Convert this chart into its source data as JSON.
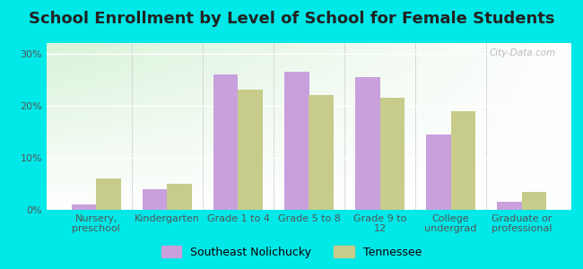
{
  "title": "School Enrollment by Level of School for Female Students",
  "categories": [
    "Nursery,\npreschool",
    "Kindergarten",
    "Grade 1 to 4",
    "Grade 5 to 8",
    "Grade 9 to\n12",
    "College\nundergrad",
    "Graduate or\nprofessional"
  ],
  "southeast_nolichucky": [
    1.0,
    4.0,
    26.0,
    26.5,
    25.5,
    14.5,
    1.5
  ],
  "tennessee": [
    6.0,
    5.0,
    23.0,
    22.0,
    21.5,
    19.0,
    3.5
  ],
  "color_southeast": "#c9a0dc",
  "color_tennessee": "#c8cc8a",
  "background_outer": "#00e8e8",
  "ylim": [
    0,
    32
  ],
  "yticks": [
    0,
    10,
    20,
    30
  ],
  "ytick_labels": [
    "0%",
    "10%",
    "20%",
    "30%"
  ],
  "legend_label_southeast": "Southeast Nolichucky",
  "legend_label_tennessee": "Tennessee",
  "title_fontsize": 13,
  "tick_fontsize": 8,
  "legend_fontsize": 9
}
